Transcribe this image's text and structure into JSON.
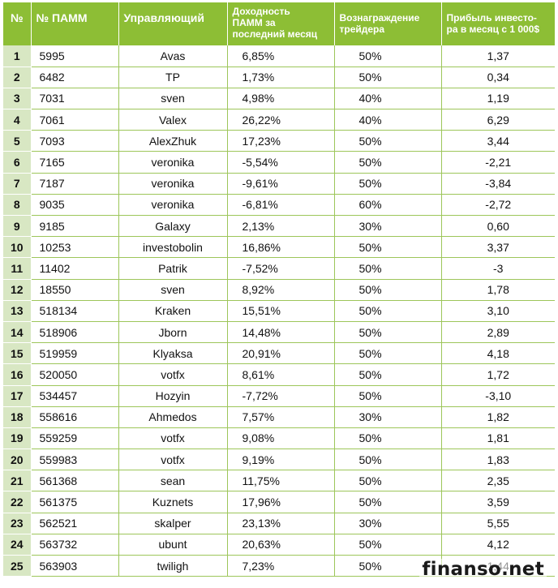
{
  "table": {
    "headers": {
      "index": "№",
      "pamm": "№ ПАММ",
      "manager": "Управляющий",
      "yield_line1": "Доходность",
      "yield_line2": "ПАММ за",
      "yield_line3": "последний месяц",
      "reward_line1": "Вознаграждение",
      "reward_line2": "трейдера",
      "profit_line1": "Прибыль инвесто-",
      "profit_line2": "ра в месяц с 1 000$"
    },
    "rows": [
      {
        "n": "1",
        "pamm": "5995",
        "manager": "Avas",
        "yield": "6,85%",
        "reward": "50%",
        "profit": "1,37"
      },
      {
        "n": "2",
        "pamm": "6482",
        "manager": "TP",
        "yield": "1,73%",
        "reward": "50%",
        "profit": "0,34"
      },
      {
        "n": "3",
        "pamm": "7031",
        "manager": "sven",
        "yield": "4,98%",
        "reward": "40%",
        "profit": "1,19"
      },
      {
        "n": "4",
        "pamm": "7061",
        "manager": "Valex",
        "yield": "26,22%",
        "reward": "40%",
        "profit": "6,29"
      },
      {
        "n": "5",
        "pamm": "7093",
        "manager": "AlexZhuk",
        "yield": "17,23%",
        "reward": "50%",
        "profit": "3,44"
      },
      {
        "n": "6",
        "pamm": "7165",
        "manager": "veronika",
        "yield": "-5,54%",
        "reward": "50%",
        "profit": "-2,21"
      },
      {
        "n": "7",
        "pamm": "7187",
        "manager": "veronika",
        "yield": "-9,61%",
        "reward": "50%",
        "profit": "-3,84"
      },
      {
        "n": "8",
        "pamm": "9035",
        "manager": "veronika",
        "yield": "-6,81%",
        "reward": "60%",
        "profit": "-2,72"
      },
      {
        "n": "9",
        "pamm": "9185",
        "manager": "Galaxy",
        "yield": "2,13%",
        "reward": "30%",
        "profit": "0,60"
      },
      {
        "n": "10",
        "pamm": "10253",
        "manager": "investobolin",
        "yield": "16,86%",
        "reward": "50%",
        "profit": "3,37"
      },
      {
        "n": "11",
        "pamm": "11402",
        "manager": "Patrik",
        "yield": "-7,52%",
        "reward": "50%",
        "profit": "-3"
      },
      {
        "n": "12",
        "pamm": "18550",
        "manager": "sven",
        "yield": "8,92%",
        "reward": "50%",
        "profit": "1,78"
      },
      {
        "n": "13",
        "pamm": "518134",
        "manager": "Kraken",
        "yield": "15,51%",
        "reward": "50%",
        "profit": "3,10"
      },
      {
        "n": "14",
        "pamm": "518906",
        "manager": "Jborn",
        "yield": "14,48%",
        "reward": "50%",
        "profit": "2,89"
      },
      {
        "n": "15",
        "pamm": "519959",
        "manager": "Klyaksa",
        "yield": "20,91%",
        "reward": "50%",
        "profit": "4,18"
      },
      {
        "n": "16",
        "pamm": "520050",
        "manager": "votfx",
        "yield": "8,61%",
        "reward": "50%",
        "profit": "1,72"
      },
      {
        "n": "17",
        "pamm": "534457",
        "manager": "Hozyin",
        "yield": "-7,72%",
        "reward": "50%",
        "profit": "-3,10"
      },
      {
        "n": "18",
        "pamm": "558616",
        "manager": "Ahmedos",
        "yield": "7,57%",
        "reward": "30%",
        "profit": "1,82"
      },
      {
        "n": "19",
        "pamm": "559259",
        "manager": "votfx",
        "yield": "9,08%",
        "reward": "50%",
        "profit": "1,81"
      },
      {
        "n": "20",
        "pamm": "559983",
        "manager": "votfx",
        "yield": "9,19%",
        "reward": "50%",
        "profit": "1,83"
      },
      {
        "n": "21",
        "pamm": "561368",
        "manager": "sean",
        "yield": "11,75%",
        "reward": "50%",
        "profit": "2,35"
      },
      {
        "n": "22",
        "pamm": "561375",
        "manager": "Kuznets",
        "yield": "17,96%",
        "reward": "50%",
        "profit": "3,59"
      },
      {
        "n": "23",
        "pamm": "562521",
        "manager": "skalper",
        "yield": "23,13%",
        "reward": "30%",
        "profit": "5,55"
      },
      {
        "n": "24",
        "pamm": "563732",
        "manager": "ubunt",
        "yield": "20,63%",
        "reward": "50%",
        "profit": "4,12"
      },
      {
        "n": "25",
        "pamm": "563903",
        "manager": "twiligh",
        "yield": "7,23%",
        "reward": "50%",
        "profit": "1,44"
      }
    ]
  },
  "watermark": "finanso.net",
  "colors": {
    "header_bg": "#8dbe35",
    "index_bg": "#d8e7c3",
    "grid": "#9dc65a"
  }
}
